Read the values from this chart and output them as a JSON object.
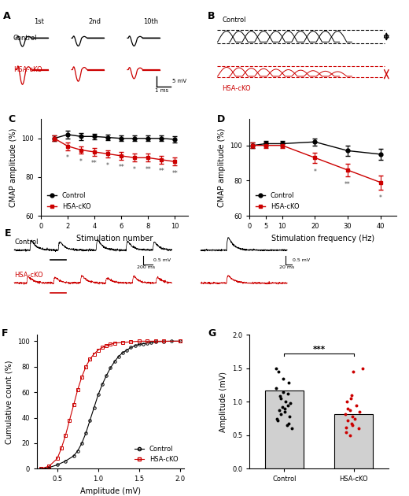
{
  "panel_C": {
    "stim_numbers": [
      1,
      2,
      3,
      4,
      5,
      6,
      7,
      8,
      9,
      10
    ],
    "control_mean": [
      100,
      102,
      101,
      101,
      100.5,
      100,
      100,
      100,
      100,
      99.5
    ],
    "control_err": [
      1.5,
      2.0,
      1.8,
      1.5,
      1.5,
      1.5,
      1.5,
      1.5,
      1.5,
      1.5
    ],
    "hsa_mean": [
      100,
      96,
      94,
      93,
      92,
      91,
      90,
      90,
      89,
      88
    ],
    "hsa_err": [
      1.5,
      2.0,
      2.0,
      2.0,
      2.0,
      2.0,
      2.0,
      2.0,
      2.0,
      2.0
    ],
    "sig_positions": [
      {
        "x": 2,
        "label": "*"
      },
      {
        "x": 3,
        "label": "*"
      },
      {
        "x": 4,
        "label": "**"
      },
      {
        "x": 5,
        "label": "*"
      },
      {
        "x": 6,
        "label": "**"
      },
      {
        "x": 7,
        "label": "*"
      },
      {
        "x": 8,
        "label": "**"
      },
      {
        "x": 9,
        "label": "**"
      },
      {
        "x": 10,
        "label": "**"
      }
    ],
    "ylabel": "CMAP amplitude (%)",
    "xlabel": "Stimulation number",
    "ylim": [
      60,
      110
    ],
    "yticks": [
      60,
      80,
      100
    ],
    "xlim": [
      0,
      11
    ],
    "xticks": [
      0,
      2,
      4,
      6,
      8,
      10
    ]
  },
  "panel_D": {
    "freqs": [
      1,
      5,
      10,
      20,
      30,
      40
    ],
    "control_mean": [
      100,
      101,
      101,
      102,
      97,
      95
    ],
    "control_err": [
      1.5,
      1.5,
      1.5,
      2.0,
      3.0,
      3.0
    ],
    "hsa_mean": [
      100,
      100,
      100,
      93,
      86,
      79
    ],
    "hsa_err": [
      1.5,
      1.5,
      1.5,
      3.0,
      3.5,
      4.0
    ],
    "sig_positions": [
      {
        "x": 20,
        "label": "*"
      },
      {
        "x": 30,
        "label": "**"
      },
      {
        "x": 40,
        "label": "*"
      }
    ],
    "ylabel": "CMAP amplitude (%)",
    "xlabel": "Stimulation frequency (Hz)",
    "ylim": [
      60,
      115
    ],
    "yticks": [
      60,
      80,
      100
    ],
    "xlim": [
      0,
      45
    ],
    "xticks": [
      0,
      5,
      10,
      20,
      30,
      40
    ]
  },
  "panel_F": {
    "control_x": [
      0.3,
      0.4,
      0.5,
      0.6,
      0.7,
      0.75,
      0.8,
      0.85,
      0.9,
      0.95,
      1.0,
      1.05,
      1.1,
      1.15,
      1.2,
      1.25,
      1.3,
      1.35,
      1.4,
      1.45,
      1.5,
      1.55,
      1.6,
      1.65,
      1.7,
      1.8,
      1.9,
      2.0
    ],
    "control_y": [
      0,
      1,
      3,
      6,
      10,
      14,
      20,
      28,
      38,
      48,
      58,
      66,
      73,
      79,
      84,
      88,
      91,
      93,
      95,
      96.5,
      97.5,
      98,
      98.5,
      99,
      99.5,
      99.8,
      100,
      100
    ],
    "hsa_x": [
      0.3,
      0.4,
      0.5,
      0.55,
      0.6,
      0.65,
      0.7,
      0.75,
      0.8,
      0.85,
      0.9,
      0.95,
      1.0,
      1.05,
      1.1,
      1.15,
      1.2,
      1.3,
      1.4,
      1.5,
      1.6,
      1.7,
      1.8,
      2.0
    ],
    "hsa_y": [
      0,
      2,
      8,
      16,
      26,
      38,
      50,
      62,
      72,
      80,
      86,
      90,
      93,
      95,
      96.5,
      97.5,
      98.5,
      99,
      99.5,
      100,
      100,
      100,
      100,
      100
    ],
    "xlabel": "Amplitude (mV)",
    "ylabel": "Cumulative count (%)",
    "xlim": [
      0.25,
      2.05
    ],
    "ylim": [
      0,
      105
    ],
    "xticks": [
      0.5,
      1.0,
      1.5,
      2.0
    ],
    "yticks": [
      0,
      20,
      40,
      60,
      80,
      100
    ]
  },
  "panel_G": {
    "control_bar_height": 1.17,
    "hsa_bar_height": 0.82,
    "control_dots": [
      0.6,
      0.65,
      0.68,
      0.72,
      0.75,
      0.78,
      0.82,
      0.85,
      0.88,
      0.9,
      0.92,
      0.95,
      0.98,
      1.0,
      1.05,
      1.08,
      1.12,
      1.15,
      1.2,
      1.28,
      1.35,
      1.45,
      1.5
    ],
    "hsa_dots": [
      0.5,
      0.55,
      0.6,
      0.62,
      0.65,
      0.68,
      0.72,
      0.75,
      0.78,
      0.82,
      0.85,
      0.88,
      0.9,
      0.95,
      1.0,
      1.05,
      1.1,
      1.45,
      1.5
    ],
    "ylabel": "Amplitude (mV)",
    "ylim": [
      0,
      2.0
    ],
    "yticks": [
      0,
      0.5,
      1.0,
      1.5,
      2.0
    ],
    "dot_color_control": "#000000",
    "dot_color_hsa": "#cc0000",
    "sig_label": "***"
  },
  "control_color": "#000000",
  "hsa_color": "#cc0000",
  "bg_color": "#ffffff"
}
